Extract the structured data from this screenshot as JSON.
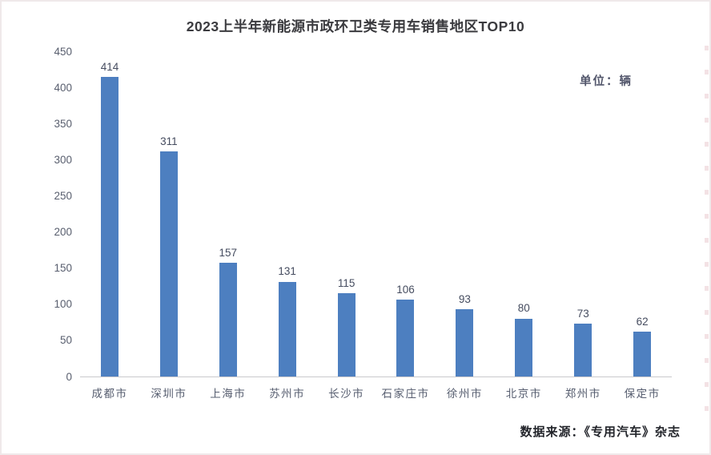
{
  "title": "2023上半年新能源市政环卫类专用车销售地区TOP10",
  "unit_label": "单位：辆",
  "source_note": "数据来源：《专用汽车》杂志",
  "colors": {
    "bar": "#4d7fc0",
    "axis_line": "#c9c9cd",
    "title_text": "#3b3b3f",
    "value_label": "#454c5f",
    "tick_label": "#585e6e",
    "frame_border": "#efe9ea"
  },
  "chart_data": {
    "type": "bar",
    "title": "2023上半年新能源市政环卫类专用车销售地区TOP10",
    "categories": [
      "成都市",
      "深圳市",
      "上海市",
      "苏州市",
      "长沙市",
      "石家庄市",
      "徐州市",
      "北京市",
      "郑州市",
      "保定市"
    ],
    "values": [
      414,
      311,
      157,
      131,
      115,
      106,
      93,
      80,
      73,
      62
    ],
    "xlabel": "",
    "ylabel": "",
    "unit": "单位：辆",
    "ylim": [
      0,
      450
    ],
    "yticks": [
      0,
      50,
      100,
      150,
      200,
      250,
      300,
      350,
      400,
      450
    ],
    "grid": false,
    "legend": false,
    "data_labels": true,
    "data_source": "数据来源：《专用汽车》杂志"
  }
}
